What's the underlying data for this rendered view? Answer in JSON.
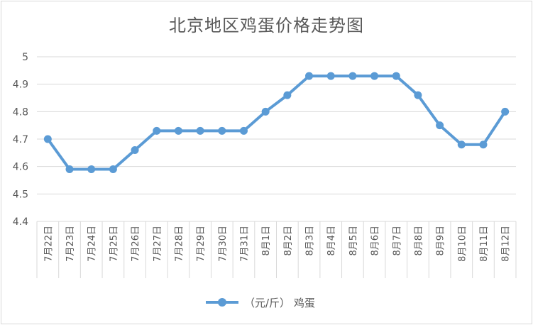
{
  "chart_data": {
    "type": "line",
    "title": "北京地区鸡蛋价格走势图",
    "categories": [
      "7月22日",
      "7月23日",
      "7月24日",
      "7月25日",
      "7月26日",
      "7月27日",
      "7月28日",
      "7月29日",
      "7月30日",
      "7月31日",
      "8月1日",
      "8月2日",
      "8月3日",
      "8月4日",
      "8月5日",
      "8月6日",
      "8月7日",
      "8月8日",
      "8月9日",
      "8月10日",
      "8月11日",
      "8月12日"
    ],
    "series": [
      {
        "name": "（元/斤） 鸡蛋",
        "values": [
          4.7,
          4.59,
          4.59,
          4.59,
          4.66,
          4.73,
          4.73,
          4.73,
          4.73,
          4.73,
          4.8,
          4.86,
          4.93,
          4.93,
          4.93,
          4.93,
          4.93,
          4.86,
          4.75,
          4.68,
          4.68,
          4.8
        ]
      }
    ],
    "ylim": [
      4.4,
      5.0
    ],
    "yticks": [
      "4.4",
      "4.5",
      "4.6",
      "4.7",
      "4.8",
      "4.9",
      "5"
    ],
    "grid": true,
    "legend": "bottom",
    "colors": {
      "series": "#5b9bd5",
      "grid": "#d9d9d9",
      "text": "#595959"
    }
  }
}
